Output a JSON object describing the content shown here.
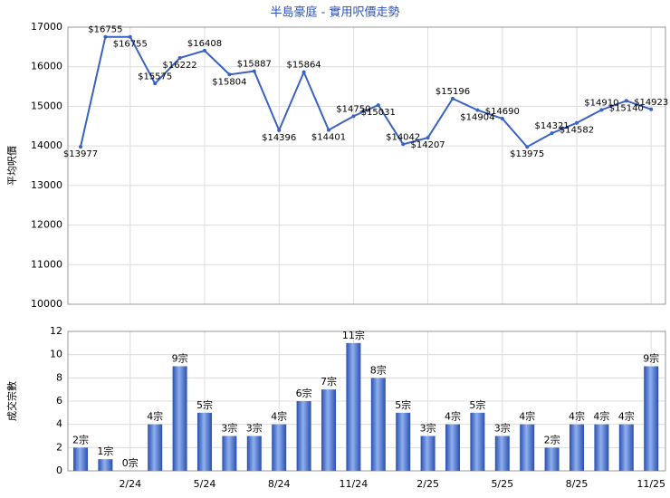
{
  "chart_data": [
    {
      "type": "line",
      "title": "半島豪庭 - 實用呎價走勢",
      "ylabel": "平均呎價",
      "color": "#3a62c4",
      "grid": true,
      "values": [
        13977,
        16755,
        16755,
        15575,
        16222,
        16408,
        15804,
        15887,
        14396,
        15864,
        14401,
        14750,
        15031,
        14042,
        14207,
        15196,
        14904,
        14690,
        13975,
        14321,
        14582,
        14910,
        15140,
        14923
      ],
      "value_labels": [
        "$13977",
        "$16755",
        "$16755",
        "$15575",
        "$16222",
        "$16408",
        "$15804",
        "$15887",
        "$14396",
        "$15864",
        "$14401",
        "$14750",
        "$15031",
        "$14042",
        "$14207",
        "$15196",
        "$14904",
        "$14690",
        "$13975",
        "$14321",
        "$14582",
        "$14910",
        "$15140",
        "$14923"
      ],
      "ylim": [
        10000,
        17000
      ],
      "yticks": [
        10000,
        11000,
        12000,
        13000,
        14000,
        15000,
        16000,
        17000
      ]
    },
    {
      "type": "bar",
      "ylabel": "成交宗數",
      "color": "#3a62c4",
      "grid": true,
      "categories": [
        null,
        null,
        "2/24",
        null,
        null,
        "5/24",
        null,
        null,
        "8/24",
        null,
        null,
        "11/24",
        null,
        null,
        "2/25",
        null,
        null,
        "5/25",
        null,
        null,
        "8/25",
        null,
        null,
        "11/25"
      ],
      "values": [
        2,
        1,
        0,
        4,
        9,
        5,
        3,
        3,
        4,
        6,
        7,
        11,
        8,
        5,
        3,
        4,
        5,
        3,
        4,
        2,
        4,
        4,
        4,
        9
      ],
      "value_labels": [
        "2宗",
        "1宗",
        "0宗",
        "4宗",
        "9宗",
        "5宗",
        "3宗",
        "3宗",
        "4宗",
        "6宗",
        "7宗",
        "11宗",
        "8宗",
        "5宗",
        "3宗",
        "4宗",
        "5宗",
        "3宗",
        "4宗",
        "2宗",
        "4宗",
        "4宗",
        "4宗",
        "9宗"
      ],
      "ylim": [
        0,
        12
      ],
      "yticks": [
        0,
        2,
        4,
        6,
        8,
        10,
        12
      ]
    }
  ]
}
